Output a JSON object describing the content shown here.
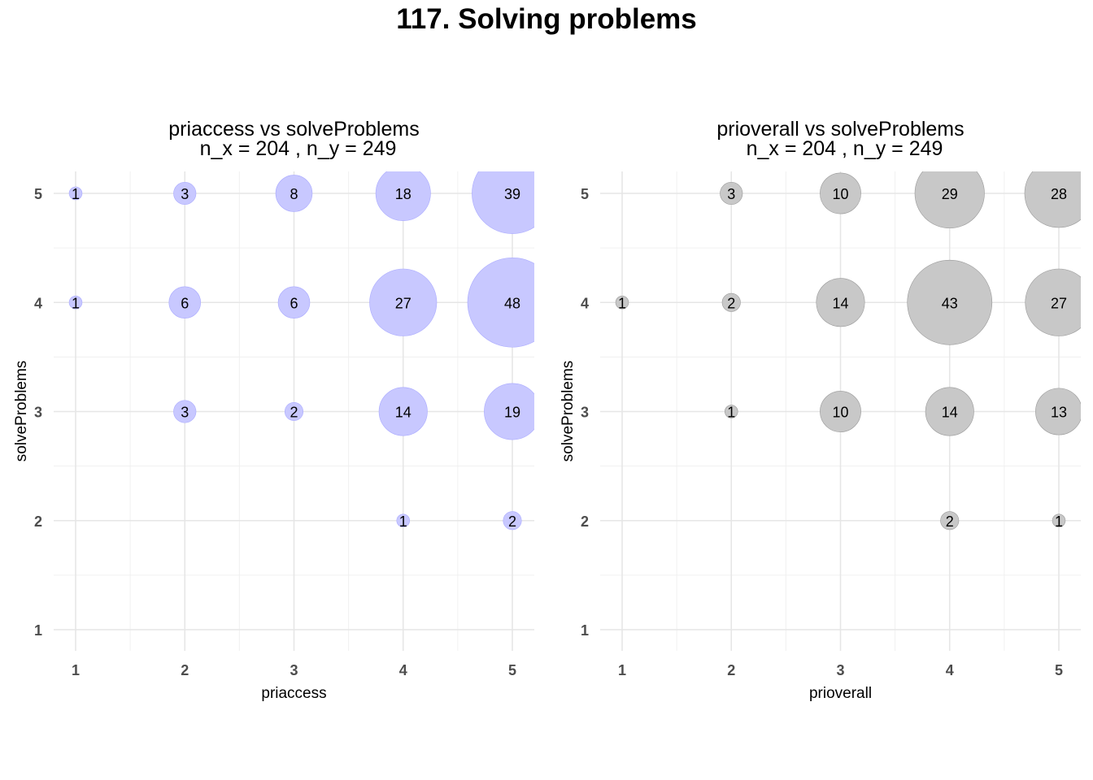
{
  "title": "117. Solving problems",
  "chart_data": [
    {
      "type": "scatter",
      "title": "priaccess vs solveProblems",
      "subtitle": "n_x = 204 , n_y = 249",
      "xlabel": "priaccess",
      "ylabel": "solveProblems",
      "xticks": [
        "1",
        "2",
        "3",
        "4",
        "5"
      ],
      "yticks": [
        "1",
        "2",
        "3",
        "4",
        "5"
      ],
      "xlim": [
        1,
        5
      ],
      "ylim": [
        1,
        5
      ],
      "grid": true,
      "bubble_color": "#c8c8ff",
      "bubble_stroke": "#aaaaff",
      "points": [
        {
          "x": 1,
          "y": 5,
          "n": 1
        },
        {
          "x": 2,
          "y": 5,
          "n": 3
        },
        {
          "x": 3,
          "y": 5,
          "n": 8
        },
        {
          "x": 4,
          "y": 5,
          "n": 18
        },
        {
          "x": 5,
          "y": 5,
          "n": 39
        },
        {
          "x": 1,
          "y": 4,
          "n": 1
        },
        {
          "x": 2,
          "y": 4,
          "n": 6
        },
        {
          "x": 3,
          "y": 4,
          "n": 6
        },
        {
          "x": 4,
          "y": 4,
          "n": 27
        },
        {
          "x": 5,
          "y": 4,
          "n": 48
        },
        {
          "x": 2,
          "y": 3,
          "n": 3
        },
        {
          "x": 3,
          "y": 3,
          "n": 2
        },
        {
          "x": 4,
          "y": 3,
          "n": 14
        },
        {
          "x": 5,
          "y": 3,
          "n": 19
        },
        {
          "x": 4,
          "y": 2,
          "n": 1
        },
        {
          "x": 5,
          "y": 2,
          "n": 2
        }
      ]
    },
    {
      "type": "scatter",
      "title": "prioverall vs solveProblems",
      "subtitle": "n_x = 204 , n_y = 249",
      "xlabel": "prioverall",
      "ylabel": "solveProblems",
      "xticks": [
        "1",
        "2",
        "3",
        "4",
        "5"
      ],
      "yticks": [
        "1",
        "2",
        "3",
        "4",
        "5"
      ],
      "xlim": [
        1,
        5
      ],
      "ylim": [
        1,
        5
      ],
      "grid": true,
      "bubble_color": "#c8c8c8",
      "bubble_stroke": "#9a9a9a",
      "points": [
        {
          "x": 2,
          "y": 5,
          "n": 3
        },
        {
          "x": 3,
          "y": 5,
          "n": 10
        },
        {
          "x": 4,
          "y": 5,
          "n": 29
        },
        {
          "x": 5,
          "y": 5,
          "n": 28
        },
        {
          "x": 1,
          "y": 4,
          "n": 1
        },
        {
          "x": 2,
          "y": 4,
          "n": 2
        },
        {
          "x": 3,
          "y": 4,
          "n": 14
        },
        {
          "x": 4,
          "y": 4,
          "n": 43
        },
        {
          "x": 5,
          "y": 4,
          "n": 27
        },
        {
          "x": 2,
          "y": 3,
          "n": 1
        },
        {
          "x": 3,
          "y": 3,
          "n": 10
        },
        {
          "x": 4,
          "y": 3,
          "n": 14
        },
        {
          "x": 5,
          "y": 3,
          "n": 13
        },
        {
          "x": 4,
          "y": 2,
          "n": 2
        },
        {
          "x": 5,
          "y": 2,
          "n": 1
        }
      ]
    }
  ]
}
